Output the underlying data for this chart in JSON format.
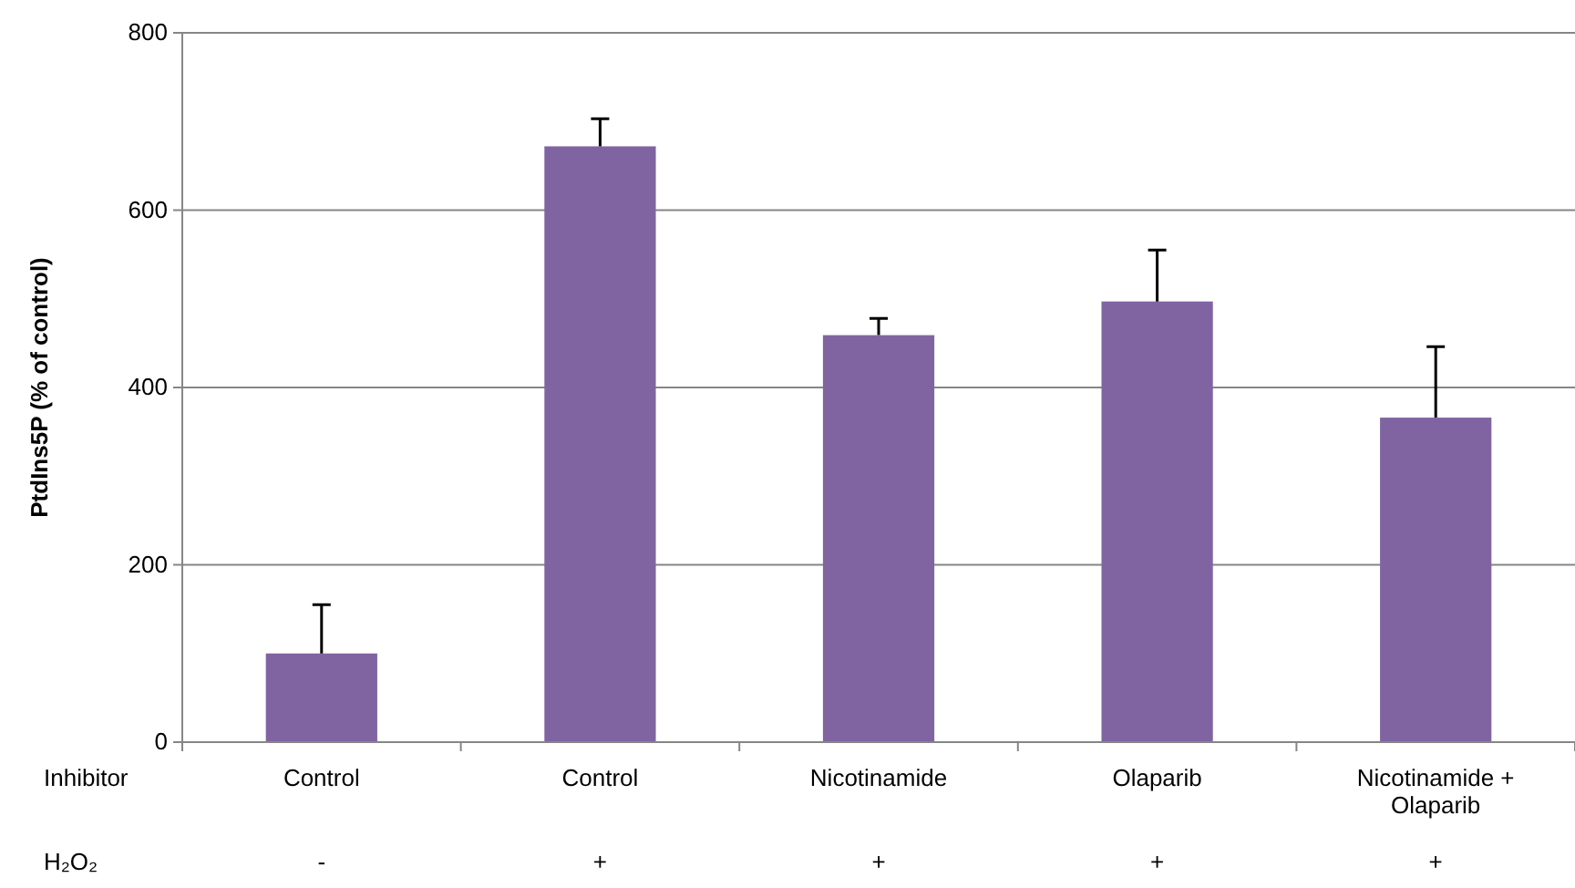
{
  "chart_data": {
    "type": "bar",
    "ylabel": "PtdIns5P (% of control)",
    "categories": [
      "Control",
      "Control",
      "Nicotinamide",
      "Olaparib",
      "Nicotinamide + Olaparib"
    ],
    "values": [
      100,
      672,
      459,
      497,
      366
    ],
    "errors": [
      [
        100,
        155
      ],
      [
        672,
        703
      ],
      [
        459,
        478
      ],
      [
        497,
        555
      ],
      [
        366,
        446
      ]
    ],
    "color": "#8064a2",
    "ylim": [
      0,
      800
    ],
    "yticks": [
      0,
      200,
      400,
      600,
      800
    ],
    "grid": "y",
    "annotations": [
      "Inhibitor",
      "H₂O₂",
      "-",
      "+",
      "+",
      "+",
      "+"
    ]
  }
}
